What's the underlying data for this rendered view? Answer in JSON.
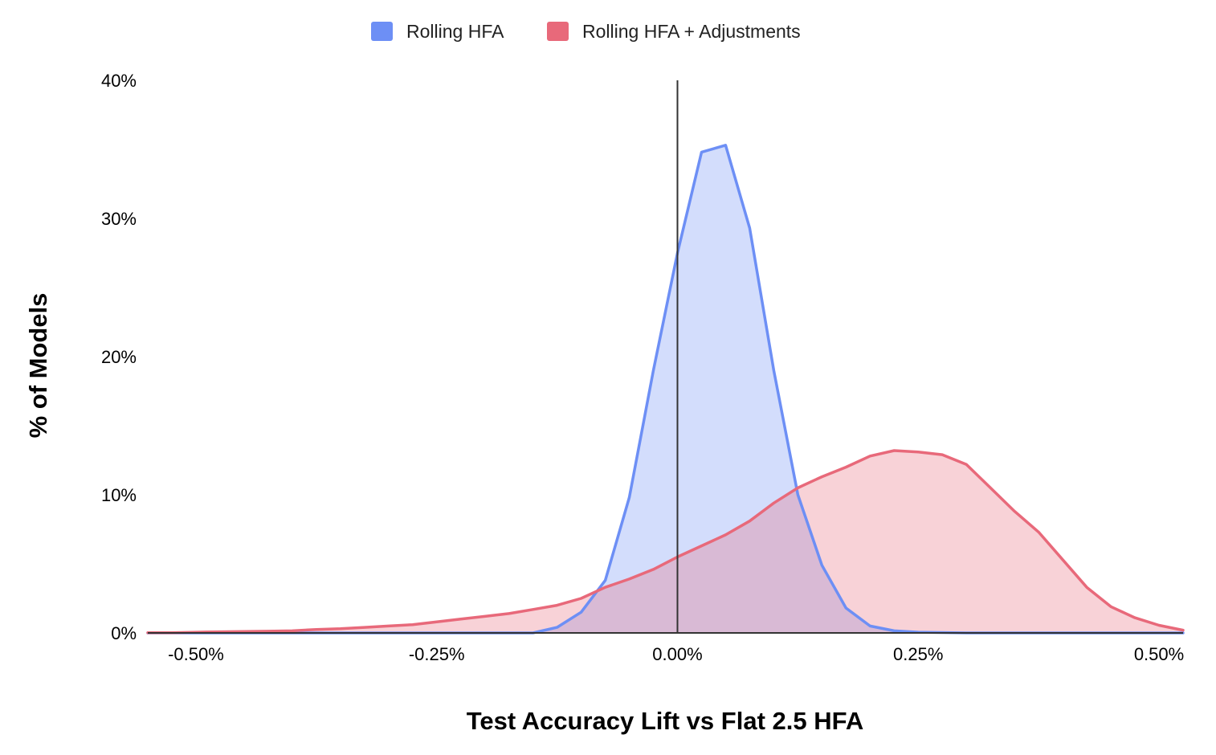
{
  "chart_data": {
    "type": "area",
    "title": "",
    "xlabel": "Test Accuracy Lift vs Flat 2.5 HFA",
    "ylabel": "% of Models",
    "xlim": [
      -0.55,
      0.525
    ],
    "ylim": [
      0,
      40
    ],
    "x_ticks": [
      -0.5,
      -0.25,
      0,
      0.25,
      0.5
    ],
    "x_tick_labels": [
      "-0.50%",
      "-0.25%",
      "0.00%",
      "0.25%",
      "0.50%"
    ],
    "y_ticks": [
      0,
      10,
      20,
      30,
      40
    ],
    "y_tick_labels": [
      "0%",
      "10%",
      "20%",
      "30%",
      "40%"
    ],
    "grid": false,
    "legend_position": "top",
    "reference_line_x": 0,
    "series": [
      {
        "name": "Rolling HFA",
        "color": "#6d8ff5",
        "fill": "#cfdaf8",
        "x": [
          -0.55,
          -0.15,
          -0.125,
          -0.1,
          -0.075,
          -0.05,
          -0.025,
          0.0,
          0.025,
          0.05,
          0.075,
          0.1,
          0.125,
          0.15,
          0.175,
          0.2,
          0.225,
          0.25,
          0.3,
          0.525
        ],
        "y": [
          0,
          0,
          0.4,
          1.5,
          3.8,
          9.8,
          19.0,
          27.5,
          34.8,
          35.3,
          29.3,
          19.0,
          10.0,
          4.9,
          1.8,
          0.5,
          0.15,
          0.05,
          0,
          0
        ]
      },
      {
        "name": "Rolling HFA + Adjustments",
        "color": "#e8697a",
        "fill": "#f8d0d6",
        "x": [
          -0.55,
          -0.525,
          -0.5,
          -0.475,
          -0.45,
          -0.425,
          -0.4,
          -0.375,
          -0.35,
          -0.325,
          -0.3,
          -0.275,
          -0.25,
          -0.225,
          -0.2,
          -0.175,
          -0.15,
          -0.125,
          -0.1,
          -0.075,
          -0.05,
          -0.025,
          0.0,
          0.025,
          0.05,
          0.075,
          0.1,
          0.125,
          0.15,
          0.175,
          0.2,
          0.225,
          0.25,
          0.275,
          0.3,
          0.325,
          0.35,
          0.375,
          0.4,
          0.425,
          0.45,
          0.475,
          0.5,
          0.525
        ],
        "y": [
          0.02,
          0.02,
          0.05,
          0.08,
          0.1,
          0.12,
          0.15,
          0.25,
          0.3,
          0.4,
          0.5,
          0.6,
          0.8,
          1.0,
          1.2,
          1.4,
          1.7,
          2.0,
          2.5,
          3.3,
          3.9,
          4.6,
          5.5,
          6.3,
          7.1,
          8.1,
          9.4,
          10.5,
          11.3,
          12.0,
          12.8,
          13.2,
          13.1,
          12.9,
          12.2,
          10.5,
          8.8,
          7.3,
          5.3,
          3.3,
          1.9,
          1.1,
          0.55,
          0.2
        ]
      }
    ]
  }
}
